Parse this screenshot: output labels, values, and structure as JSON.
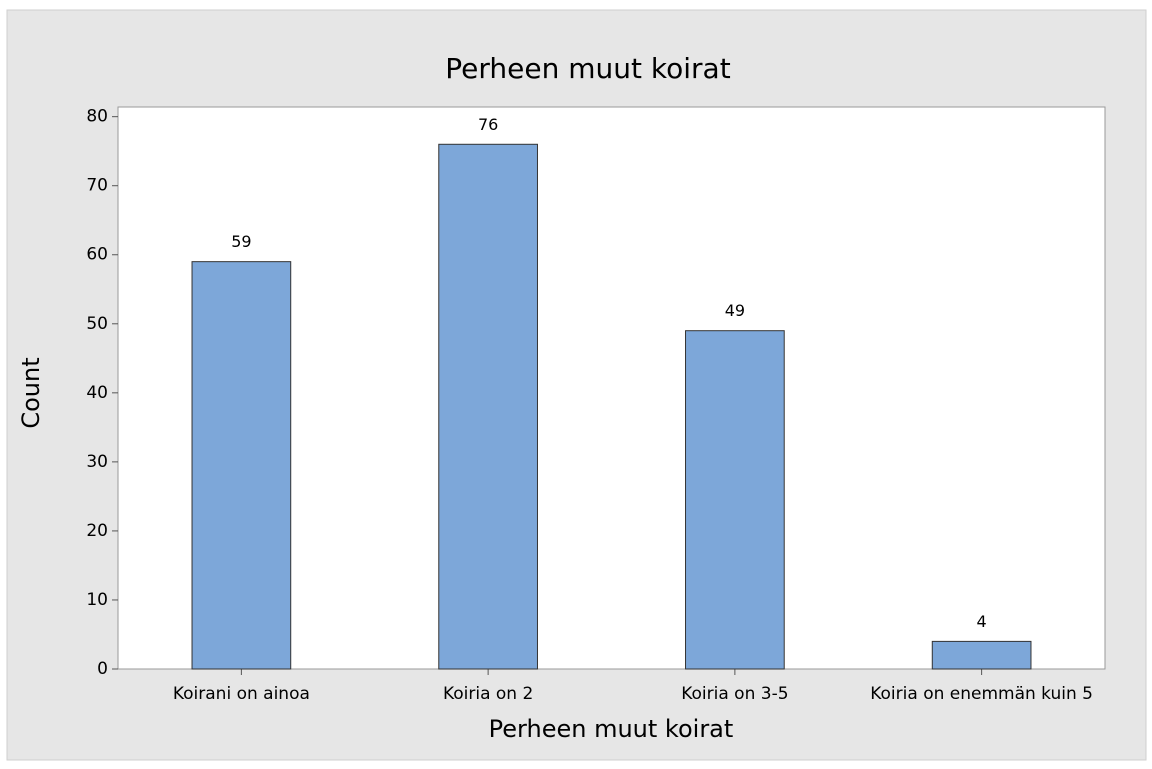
{
  "chart_data": {
    "type": "bar",
    "title": "Perheen muut koirat",
    "x_label": "Perheen muut koirat",
    "y_label": "Count",
    "categories": [
      "Koirani on ainoa",
      "Koiria on 2",
      "Koiria on 3-5",
      "Koiria on enemmän kuin 5"
    ],
    "values": [
      59,
      76,
      49,
      4
    ],
    "color": "#7da7d9",
    "ylim": [
      0,
      81.4
    ],
    "yticks": [
      0,
      10,
      20,
      30,
      40,
      50,
      60,
      70,
      80
    ],
    "grid": false
  }
}
